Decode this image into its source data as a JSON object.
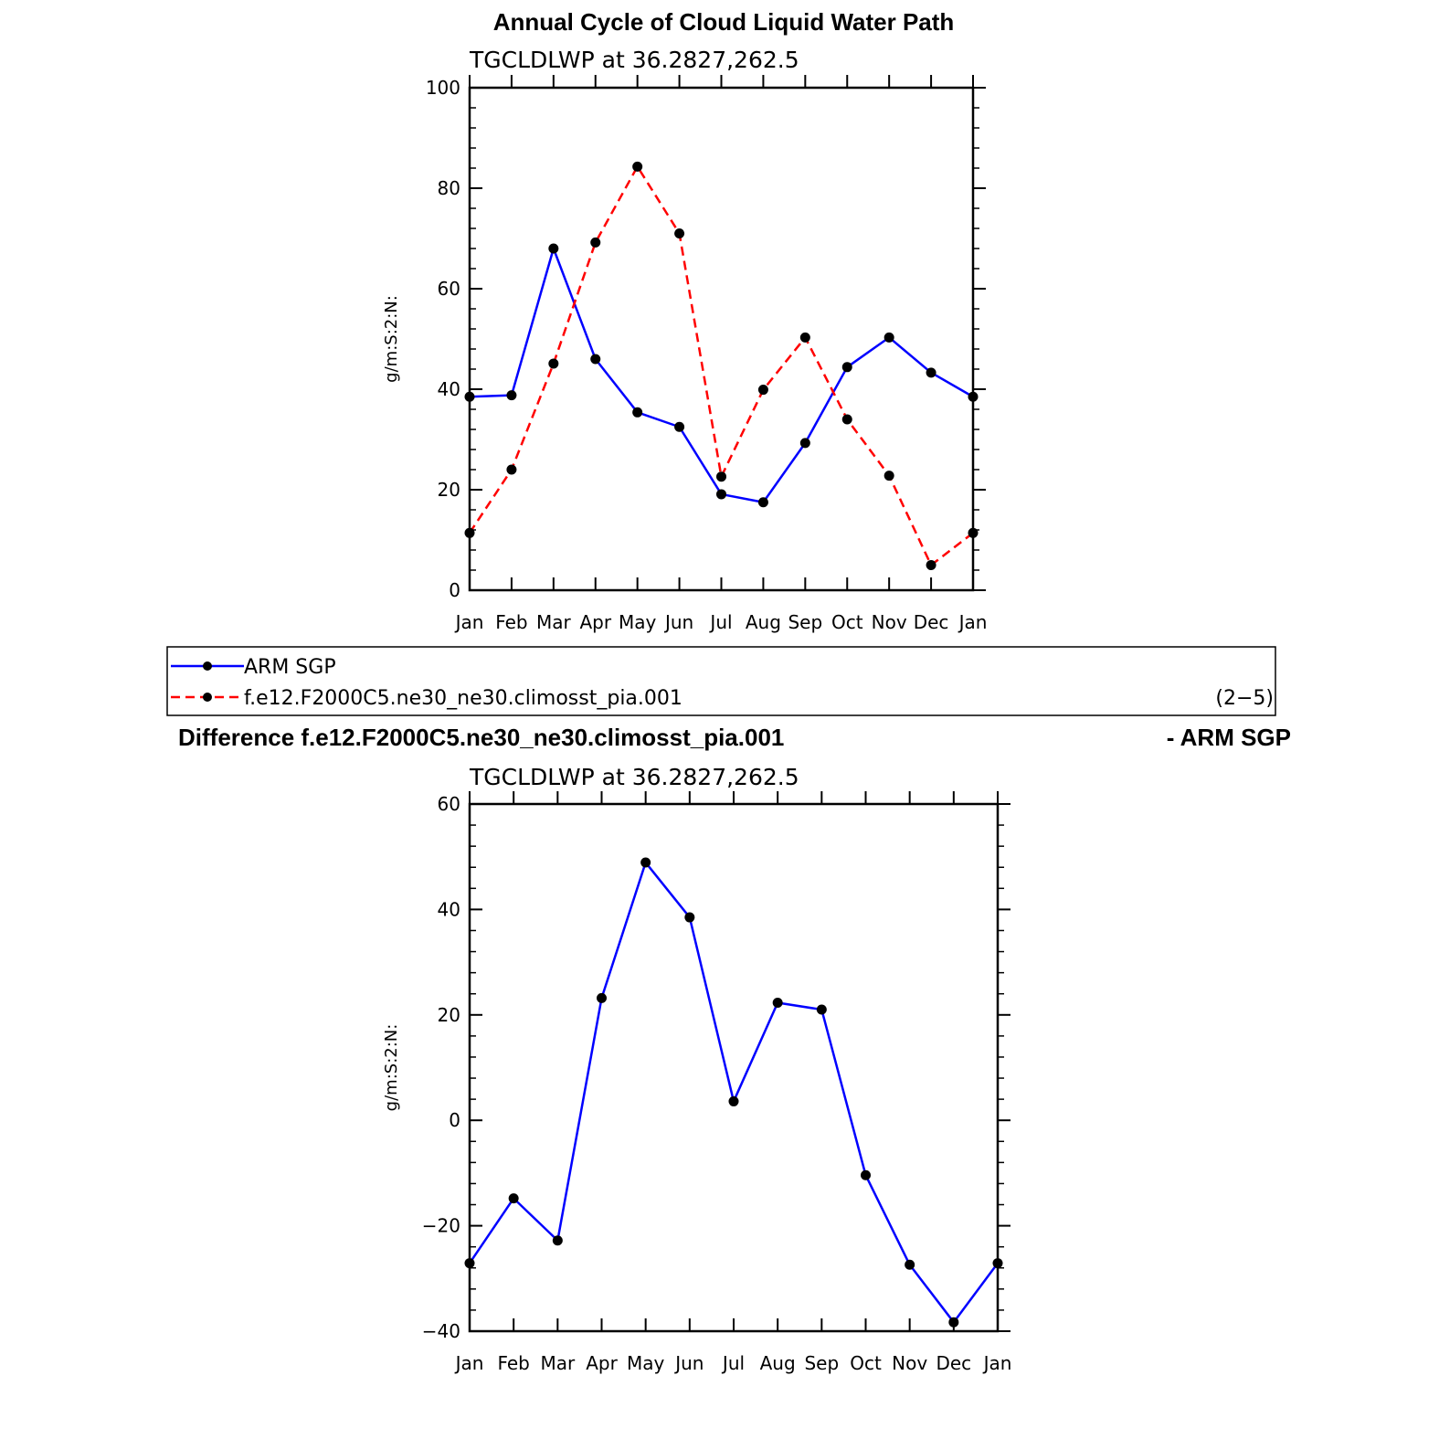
{
  "chart_data": [
    {
      "type": "line",
      "title": "Annual Cycle of Cloud Liquid Water Path",
      "subtitle": "TGCLDLWP at 36.2827,262.5",
      "ylabel": "g/m:S:2:N:",
      "categories": [
        "Jan",
        "Feb",
        "Mar",
        "Apr",
        "May",
        "Jun",
        "Jul",
        "Aug",
        "Sep",
        "Oct",
        "Nov",
        "Dec",
        "Jan"
      ],
      "yticks": [
        0,
        20,
        40,
        60,
        80,
        100
      ],
      "ylim": [
        0,
        100
      ],
      "series": [
        {
          "name": "ARM SGP",
          "color": "#0000ff",
          "dash": "solid",
          "values": [
            38.5,
            38.8,
            68.0,
            46.0,
            35.4,
            32.5,
            19.1,
            17.5,
            29.3,
            44.4,
            50.3,
            43.3,
            38.5
          ]
        },
        {
          "name": "f.e12.F2000C5.ne30_ne30.climosst_pia.001",
          "color": "#ff0000",
          "dash": "dashed",
          "values": [
            11.4,
            24.0,
            45.1,
            69.2,
            84.3,
            71.0,
            22.6,
            39.9,
            50.3,
            34.0,
            22.8,
            5.0,
            11.4
          ]
        }
      ]
    },
    {
      "type": "line",
      "title": "Difference f.e12.F2000C5.ne30_ne30.climosst_pia.001",
      "title_right": "- ARM SGP",
      "subtitle": "TGCLDLWP at 36.2827,262.5",
      "ylabel": "g/m:S:2:N:",
      "categories": [
        "Jan",
        "Feb",
        "Mar",
        "Apr",
        "May",
        "Jun",
        "Jul",
        "Aug",
        "Sep",
        "Oct",
        "Nov",
        "Dec",
        "Jan"
      ],
      "yticks": [
        -40,
        -20,
        0,
        20,
        40,
        60
      ],
      "ylim": [
        -40,
        60
      ],
      "series": [
        {
          "color": "#0000ff",
          "dash": "solid",
          "values": [
            -27.1,
            -14.8,
            -22.8,
            23.2,
            48.9,
            38.5,
            3.6,
            22.3,
            21.0,
            -10.4,
            -27.4,
            -38.3,
            -27.1
          ]
        }
      ]
    }
  ],
  "legend": {
    "items": [
      "ARM SGP",
      "f.e12.F2000C5.ne30_ne30.climosst_pia.001"
    ],
    "note": "(2−5)"
  }
}
